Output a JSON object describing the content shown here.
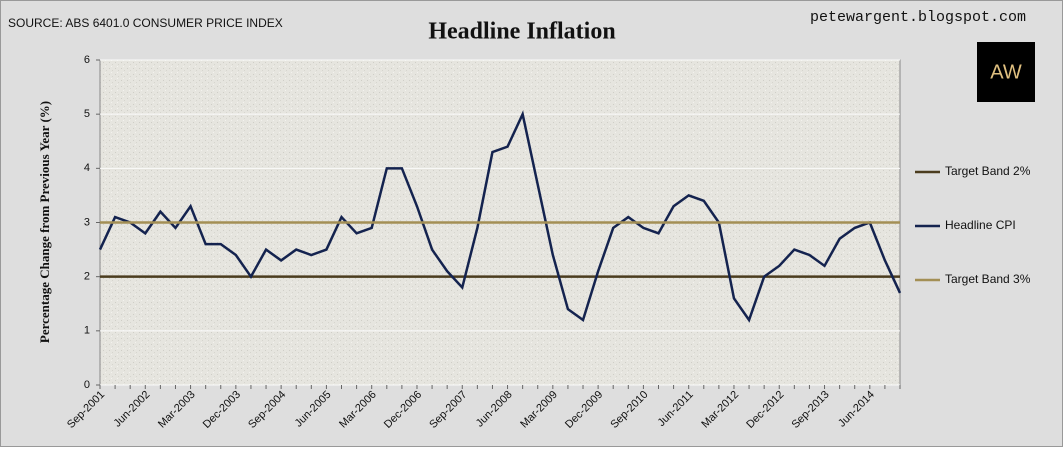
{
  "chart_data": {
    "type": "line",
    "title": "Headline Inflation",
    "source": "SOURCE: ABS 6401.0 CONSUMER PRICE INDEX",
    "watermark": "petewargent.blogspot.com",
    "logo": "AW",
    "y_label": "Percentage Change from Previous Year (%)",
    "categories": [
      "Sep-2001",
      null,
      null,
      "Jun-2002",
      null,
      null,
      "Mar-2003",
      null,
      null,
      "Dec-2003",
      null,
      null,
      "Sep-2004",
      null,
      null,
      "Jun-2005",
      null,
      null,
      "Mar-2006",
      null,
      null,
      "Dec-2006",
      null,
      null,
      "Sep-2007",
      null,
      null,
      "Jun-2008",
      null,
      null,
      "Mar-2009",
      null,
      null,
      "Dec-2009",
      null,
      null,
      "Sep-2010",
      null,
      null,
      "Jun-2011",
      null,
      null,
      "Mar-2012",
      null,
      null,
      "Dec-2012",
      null,
      null,
      "Sep-2013",
      null,
      null,
      "Jun-2014",
      null,
      null
    ],
    "series": [
      {
        "name": "Target Band 2%",
        "color": "#4b3c1e",
        "values": [
          2,
          2,
          2,
          2,
          2,
          2,
          2,
          2,
          2,
          2,
          2,
          2,
          2,
          2,
          2,
          2,
          2,
          2,
          2,
          2,
          2,
          2,
          2,
          2,
          2,
          2,
          2,
          2,
          2,
          2,
          2,
          2,
          2,
          2,
          2,
          2,
          2,
          2,
          2,
          2,
          2,
          2,
          2,
          2,
          2,
          2,
          2,
          2,
          2,
          2,
          2,
          2,
          2,
          2
        ]
      },
      {
        "name": "Headline CPI",
        "color": "#14234f",
        "values": [
          2.5,
          3.1,
          3.0,
          2.8,
          3.2,
          2.9,
          3.3,
          2.6,
          2.6,
          2.4,
          2.0,
          2.5,
          2.3,
          2.5,
          2.4,
          2.5,
          3.1,
          2.8,
          2.9,
          4.0,
          4.0,
          3.3,
          2.5,
          2.1,
          1.8,
          2.9,
          4.3,
          4.4,
          5.0,
          3.7,
          2.4,
          1.4,
          1.2,
          2.1,
          2.9,
          3.1,
          2.9,
          2.8,
          3.3,
          3.5,
          3.4,
          3.0,
          1.6,
          1.2,
          2.0,
          2.2,
          2.5,
          2.4,
          2.2,
          2.7,
          2.9,
          3.0,
          2.3,
          1.7
        ]
      },
      {
        "name": "Target Band 3%",
        "color": "#a38f55",
        "values": [
          3,
          3,
          3,
          3,
          3,
          3,
          3,
          3,
          3,
          3,
          3,
          3,
          3,
          3,
          3,
          3,
          3,
          3,
          3,
          3,
          3,
          3,
          3,
          3,
          3,
          3,
          3,
          3,
          3,
          3,
          3,
          3,
          3,
          3,
          3,
          3,
          3,
          3,
          3,
          3,
          3,
          3,
          3,
          3,
          3,
          3,
          3,
          3,
          3,
          3,
          3,
          3,
          3,
          3
        ]
      }
    ],
    "ylim": [
      0,
      6
    ],
    "yticks": [
      0,
      1,
      2,
      3,
      4,
      5,
      6
    ],
    "grid": true
  }
}
